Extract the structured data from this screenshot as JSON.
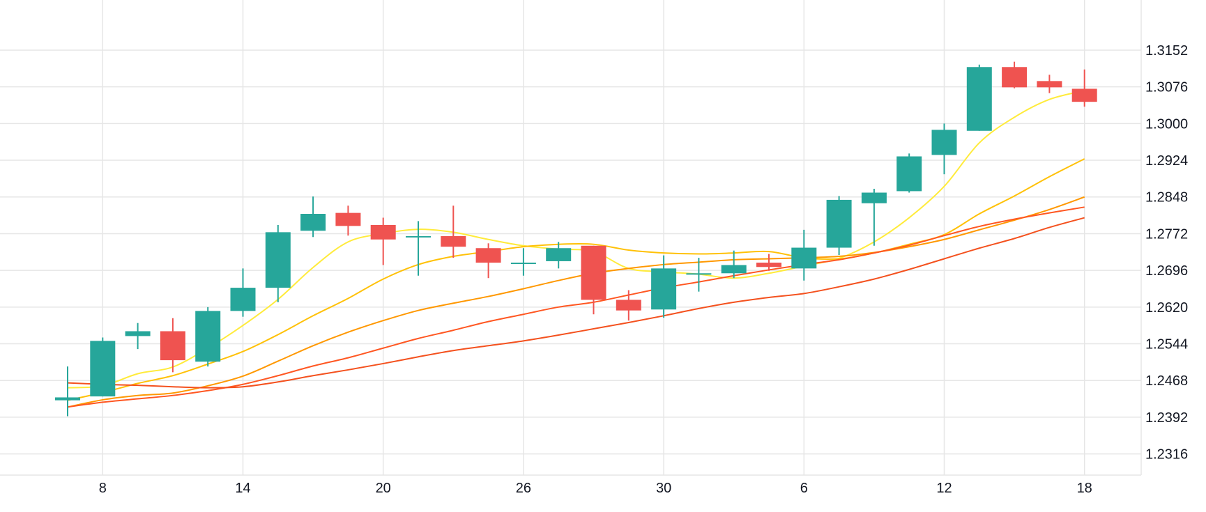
{
  "chart_data": {
    "type": "candlestick",
    "x_tick_labels": [
      "8",
      "14",
      "20",
      "26",
      "30",
      "6",
      "12",
      "18"
    ],
    "x_tick_candle_index": [
      1,
      5,
      9,
      13,
      17,
      21,
      25,
      29
    ],
    "y_tick_labels": [
      "1.3152",
      "1.3076",
      "1.3000",
      "1.2924",
      "1.2848",
      "1.2772",
      "1.2696",
      "1.2620",
      "1.2544",
      "1.2468",
      "1.2392",
      "1.2316"
    ],
    "y_ticks": [
      1.3152,
      1.3076,
      1.3,
      1.2924,
      1.2848,
      1.2772,
      1.2696,
      1.262,
      1.2544,
      1.2468,
      1.2392,
      1.2316
    ],
    "ylim": [
      1.2235,
      1.3235
    ],
    "grid": true,
    "up_color": "#26a69a",
    "down_color": "#ef5350",
    "candles": [
      {
        "o": 1.2427,
        "h": 1.2497,
        "l": 1.2394,
        "c": 1.2433
      },
      {
        "o": 1.2435,
        "h": 1.2557,
        "l": 1.2435,
        "c": 1.255
      },
      {
        "o": 1.256,
        "h": 1.2587,
        "l": 1.2533,
        "c": 1.257
      },
      {
        "o": 1.257,
        "h": 1.2597,
        "l": 1.2485,
        "c": 1.251
      },
      {
        "o": 1.2507,
        "h": 1.262,
        "l": 1.2497,
        "c": 1.2612
      },
      {
        "o": 1.2612,
        "h": 1.27,
        "l": 1.26,
        "c": 1.266
      },
      {
        "o": 1.266,
        "h": 1.279,
        "l": 1.263,
        "c": 1.2775
      },
      {
        "o": 1.2778,
        "h": 1.2849,
        "l": 1.2765,
        "c": 1.2813
      },
      {
        "o": 1.2815,
        "h": 1.283,
        "l": 1.2768,
        "c": 1.2788
      },
      {
        "o": 1.279,
        "h": 1.2805,
        "l": 1.2707,
        "c": 1.276
      },
      {
        "o": 1.2765,
        "h": 1.2798,
        "l": 1.2685,
        "c": 1.2767
      },
      {
        "o": 1.2767,
        "h": 1.283,
        "l": 1.2722,
        "c": 1.2745
      },
      {
        "o": 1.2742,
        "h": 1.2752,
        "l": 1.268,
        "c": 1.2712
      },
      {
        "o": 1.2712,
        "h": 1.2742,
        "l": 1.2685,
        "c": 1.2712
      },
      {
        "o": 1.2715,
        "h": 1.2755,
        "l": 1.27,
        "c": 1.2742
      },
      {
        "o": 1.2747,
        "h": 1.2747,
        "l": 1.2605,
        "c": 1.2635
      },
      {
        "o": 1.2635,
        "h": 1.2655,
        "l": 1.2592,
        "c": 1.2613
      },
      {
        "o": 1.2615,
        "h": 1.2727,
        "l": 1.2598,
        "c": 1.27
      },
      {
        "o": 1.269,
        "h": 1.2722,
        "l": 1.2652,
        "c": 1.269
      },
      {
        "o": 1.269,
        "h": 1.2737,
        "l": 1.268,
        "c": 1.2707
      },
      {
        "o": 1.2712,
        "h": 1.273,
        "l": 1.2695,
        "c": 1.2703
      },
      {
        "o": 1.27,
        "h": 1.278,
        "l": 1.2675,
        "c": 1.2743
      },
      {
        "o": 1.2743,
        "h": 1.285,
        "l": 1.2728,
        "c": 1.2842
      },
      {
        "o": 1.2835,
        "h": 1.2865,
        "l": 1.2747,
        "c": 1.2857
      },
      {
        "o": 1.286,
        "h": 1.2938,
        "l": 1.2857,
        "c": 1.2932
      },
      {
        "o": 1.2935,
        "h": 1.3,
        "l": 1.2895,
        "c": 1.2987
      },
      {
        "o": 1.2985,
        "h": 1.3122,
        "l": 1.2985,
        "c": 1.3117
      },
      {
        "o": 1.3117,
        "h": 1.3128,
        "l": 1.3073,
        "c": 1.3075
      },
      {
        "o": 1.3088,
        "h": 1.3101,
        "l": 1.3063,
        "c": 1.3075
      },
      {
        "o": 1.3072,
        "h": 1.3112,
        "l": 1.3035,
        "c": 1.3045
      }
    ],
    "ma_series": [
      {
        "color": "#ffeb3b",
        "values": [
          1.2453,
          1.2457,
          1.2482,
          1.2496,
          1.2535,
          1.2582,
          1.2636,
          1.2702,
          1.2755,
          1.2772,
          1.2781,
          1.2775,
          1.276,
          1.2747,
          1.274,
          1.2735,
          1.27,
          1.2693,
          1.2688,
          1.268,
          1.269,
          1.2705,
          1.2721,
          1.2755,
          1.2805,
          1.287,
          1.296,
          1.3013,
          1.305,
          1.3068
        ]
      },
      {
        "color": "#ffc107",
        "values": [
          1.2427,
          1.2443,
          1.2462,
          1.2478,
          1.2502,
          1.2528,
          1.2563,
          1.2602,
          1.2638,
          1.2678,
          1.2708,
          1.2725,
          1.2735,
          1.2745,
          1.275,
          1.275,
          1.2738,
          1.2732,
          1.273,
          1.2732,
          1.2735,
          1.2722,
          1.272,
          1.2732,
          1.275,
          1.277,
          1.2813,
          1.285,
          1.289,
          1.2927
        ]
      },
      {
        "color": "#ff9800",
        "values": [
          1.2413,
          1.2428,
          1.2437,
          1.2442,
          1.2457,
          1.2477,
          1.2508,
          1.254,
          1.2568,
          1.2592,
          1.2613,
          1.2628,
          1.2642,
          1.2658,
          1.2675,
          1.269,
          1.27,
          1.2708,
          1.2713,
          1.2718,
          1.272,
          1.2722,
          1.2725,
          1.2733,
          1.2745,
          1.276,
          1.278,
          1.28,
          1.2822,
          1.2848
        ]
      },
      {
        "color": "#ff5722",
        "values": [
          1.2413,
          1.2423,
          1.243,
          1.2437,
          1.2447,
          1.246,
          1.2478,
          1.2498,
          1.2515,
          1.2535,
          1.2555,
          1.2572,
          1.259,
          1.2605,
          1.262,
          1.263,
          1.2645,
          1.266,
          1.2672,
          1.2685,
          1.2697,
          1.2708,
          1.2718,
          1.2732,
          1.2748,
          1.2768,
          1.2787,
          1.2802,
          1.2815,
          1.2827
        ]
      },
      {
        "color": "#f4511e",
        "values": [
          1.2463,
          1.246,
          1.2458,
          1.2455,
          1.2453,
          1.2455,
          1.2465,
          1.2478,
          1.249,
          1.2503,
          1.2517,
          1.253,
          1.254,
          1.255,
          1.2562,
          1.2575,
          1.2588,
          1.2602,
          1.2617,
          1.263,
          1.264,
          1.2648,
          1.2662,
          1.2678,
          1.2698,
          1.272,
          1.2742,
          1.2762,
          1.2785,
          1.2805
        ]
      }
    ]
  }
}
